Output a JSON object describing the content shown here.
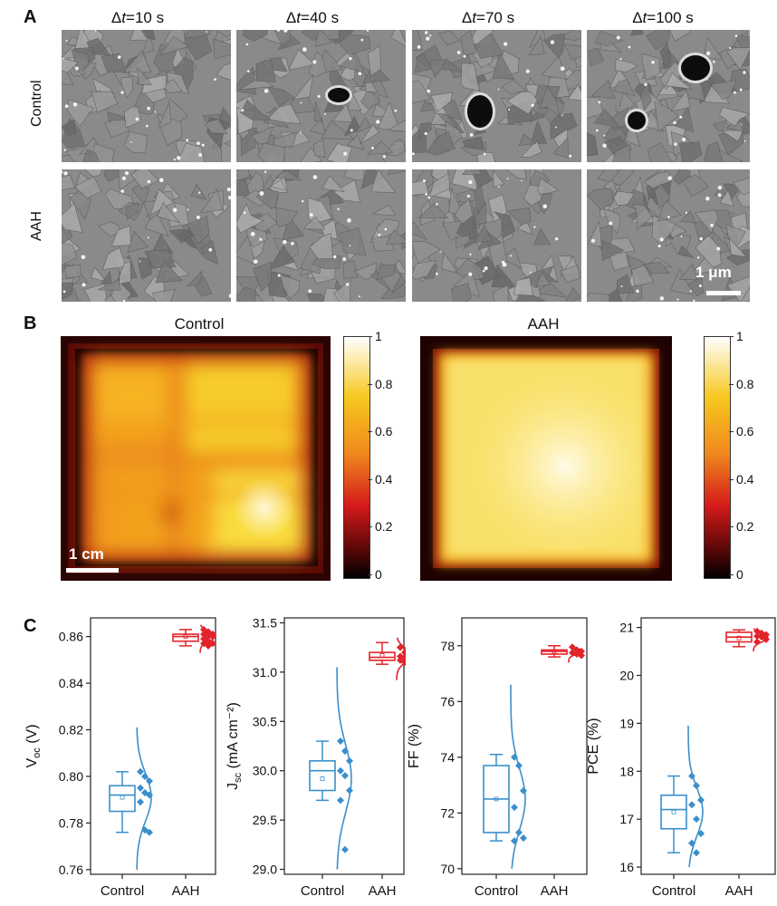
{
  "panel_a": {
    "letter": "A",
    "columns": [
      {
        "delta": "Δ",
        "t": "t",
        "value": "=10 s"
      },
      {
        "delta": "Δ",
        "t": "t",
        "value": "=40 s"
      },
      {
        "delta": "Δ",
        "t": "t",
        "value": "=70 s"
      },
      {
        "delta": "Δ",
        "t": "t",
        "value": "=100 s"
      }
    ],
    "rows": [
      "Control",
      "AAH"
    ],
    "scale_bar": "1 μm"
  },
  "panel_b": {
    "letter": "B",
    "maps": [
      {
        "title": "Control",
        "scale_bar": "1 cm"
      },
      {
        "title": "AAH"
      }
    ],
    "colorbar_ticks": [
      "1",
      "0.8",
      "0.6",
      "0.4",
      "0.2",
      "0"
    ],
    "colors": {
      "low": "#000000",
      "mid": "#d51a1a",
      "high_mid": "#f7c81e",
      "high": "#ffffff"
    }
  },
  "panel_c": {
    "letter": "C",
    "colors": {
      "control": "#3a8fcc",
      "aah": "#e2232a"
    }
  },
  "chart_data": [
    {
      "type": "box",
      "ylabel_main": "V",
      "ylabel_sub": "oc",
      "ylabel_unit": " (V)",
      "categories": [
        "Control",
        "AAH"
      ],
      "ylim": [
        0.758,
        0.868
      ],
      "yticks": [
        "0.76",
        "0.78",
        "0.80",
        "0.82",
        "0.84",
        "0.86"
      ],
      "ytick_values": [
        0.76,
        0.78,
        0.8,
        0.82,
        0.84,
        0.86
      ],
      "control": {
        "min": 0.776,
        "q1": 0.785,
        "median": 0.792,
        "q3": 0.796,
        "max": 0.802,
        "mean": 0.791,
        "points": [
          0.802,
          0.8,
          0.798,
          0.795,
          0.793,
          0.792,
          0.789,
          0.777,
          0.776
        ],
        "curve_range": [
          0.76,
          0.821
        ]
      },
      "aah": {
        "min": 0.856,
        "q1": 0.858,
        "median": 0.86,
        "q3": 0.861,
        "max": 0.863,
        "mean": 0.86,
        "points": [
          0.863,
          0.862,
          0.861,
          0.861,
          0.86,
          0.86,
          0.859,
          0.858,
          0.857,
          0.857,
          0.856
        ],
        "curve_range": [
          0.853,
          0.865
        ]
      }
    },
    {
      "type": "box",
      "ylabel_main": "J",
      "ylabel_sub": "sc",
      "ylabel_unit": " (mA cm⁻²)",
      "categories": [
        "Control",
        "AAH"
      ],
      "ylim": [
        28.95,
        31.55
      ],
      "yticks": [
        "29.0",
        "29.5",
        "30.0",
        "30.5",
        "31.0",
        "31.5"
      ],
      "ytick_values": [
        29.0,
        29.5,
        30.0,
        30.5,
        31.0,
        31.5
      ],
      "control": {
        "min": 29.7,
        "q1": 29.8,
        "median": 30.0,
        "q3": 30.1,
        "max": 30.3,
        "mean": 29.92,
        "points": [
          30.3,
          30.2,
          30.1,
          30.0,
          29.95,
          29.8,
          29.7,
          29.2
        ],
        "curve_range": [
          29.0,
          31.05
        ]
      },
      "aah": {
        "min": 31.08,
        "q1": 31.12,
        "median": 31.15,
        "q3": 31.2,
        "max": 31.3,
        "mean": 31.17,
        "points": [
          31.25,
          31.2,
          31.18,
          31.16,
          31.15,
          31.13,
          31.12,
          31.1
        ],
        "curve_range": [
          30.92,
          31.35
        ]
      }
    },
    {
      "type": "box",
      "ylabel_main": "FF (%)",
      "ylabel_sub": "",
      "ylabel_unit": "",
      "categories": [
        "Control",
        "AAH"
      ],
      "ylim": [
        69.8,
        79.0
      ],
      "yticks": [
        "70",
        "72",
        "74",
        "76",
        "78"
      ],
      "ytick_values": [
        70,
        72,
        74,
        76,
        78
      ],
      "control": {
        "min": 71.0,
        "q1": 71.3,
        "median": 72.5,
        "q3": 73.7,
        "max": 74.1,
        "mean": 72.5,
        "points": [
          74.0,
          73.7,
          72.8,
          72.2,
          71.3,
          71.1,
          71.0
        ],
        "curve_range": [
          70.0,
          76.6
        ]
      },
      "aah": {
        "min": 77.6,
        "q1": 77.7,
        "median": 77.8,
        "q3": 77.85,
        "max": 78.0,
        "mean": 77.8,
        "points": [
          77.95,
          77.85,
          77.8,
          77.75,
          77.7,
          77.65
        ],
        "curve_range": [
          77.4,
          78.0
        ]
      }
    },
    {
      "type": "box",
      "ylabel_main": "PCE (%)",
      "ylabel_sub": "",
      "ylabel_unit": "",
      "categories": [
        "Control",
        "AAH"
      ],
      "ylim": [
        15.85,
        21.2
      ],
      "yticks": [
        "16",
        "17",
        "18",
        "19",
        "20",
        "21"
      ],
      "ytick_values": [
        16,
        17,
        18,
        19,
        20,
        21
      ],
      "control": {
        "min": 16.3,
        "q1": 16.8,
        "median": 17.2,
        "q3": 17.5,
        "max": 17.9,
        "mean": 17.15,
        "points": [
          17.9,
          17.7,
          17.4,
          17.3,
          17.0,
          16.7,
          16.5,
          16.3
        ],
        "curve_range": [
          16.0,
          18.95
        ]
      },
      "aah": {
        "min": 20.6,
        "q1": 20.7,
        "median": 20.8,
        "q3": 20.9,
        "max": 20.95,
        "mean": 20.78,
        "points": [
          20.92,
          20.88,
          20.85,
          20.82,
          20.8,
          20.75,
          20.7
        ],
        "curve_range": [
          20.5,
          20.98
        ]
      }
    }
  ]
}
